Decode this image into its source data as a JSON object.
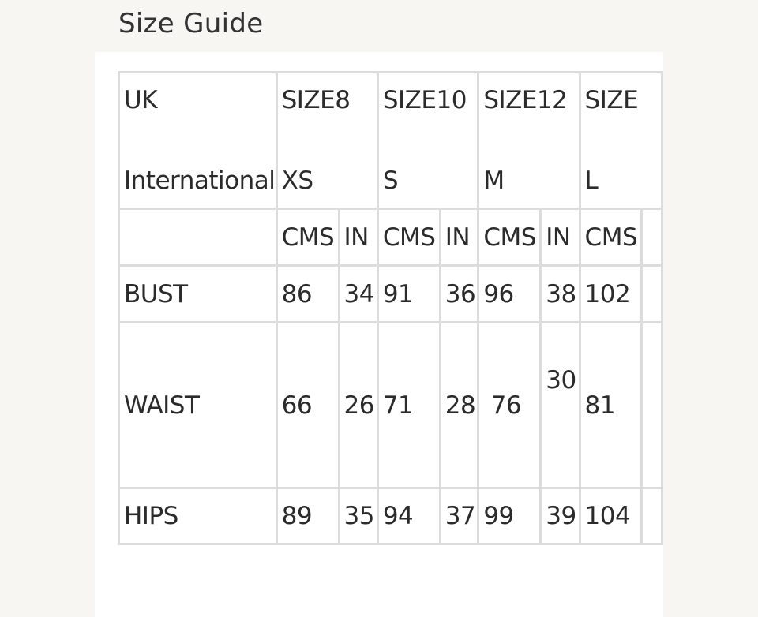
{
  "title": "Size Guide",
  "table": {
    "row_labels": {
      "uk": "UK",
      "international": "International",
      "bust": "BUST",
      "waist": "WAIST",
      "hips": "HIPS"
    },
    "sizes": [
      {
        "uk": "SIZE8",
        "intl": "XS",
        "cms": "CMS",
        "in": "IN",
        "bust_cms": "86",
        "bust_in": "34",
        "waist_cms": "66",
        "waist_in": "26",
        "hips_cms": "89",
        "hips_in": "35"
      },
      {
        "uk": "SIZE10",
        "intl": "S",
        "cms": "CMS",
        "in": "IN",
        "bust_cms": "91",
        "bust_in": "36",
        "waist_cms": "71",
        "waist_in": "28",
        "hips_cms": "94",
        "hips_in": "37"
      },
      {
        "uk": "SIZE12",
        "intl": "M",
        "cms": "CMS",
        "in": "IN",
        "bust_cms": "96",
        "bust_in": "38",
        "waist_cms": " 76",
        "waist_in": "30",
        "hips_cms": "99",
        "hips_in": "39"
      },
      {
        "uk": "SIZE",
        "intl": "L",
        "cms": "CMS",
        "bust_cms": "102",
        "waist_cms": "81",
        "hips_cms": "104"
      }
    ]
  },
  "colors": {
    "background": "#f7f6f3",
    "panel": "#ffffff",
    "border": "#dcdcdc",
    "text": "#2b2b2b"
  }
}
